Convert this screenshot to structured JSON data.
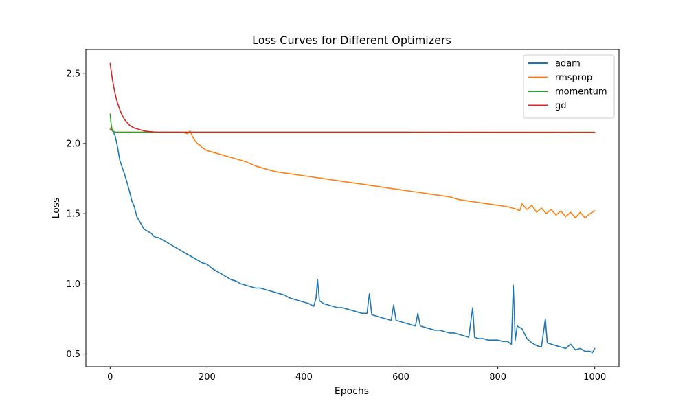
{
  "chart_data": {
    "type": "line",
    "title": "Loss Curves for Different Optimizers",
    "xlabel": "Epochs",
    "ylabel": "Loss",
    "xlim": [
      -50,
      1050
    ],
    "ylim": [
      0.41,
      2.67
    ],
    "xticks": [
      0,
      200,
      400,
      600,
      800,
      1000
    ],
    "xtick_labels": [
      "0",
      "200",
      "400",
      "600",
      "800",
      "1000"
    ],
    "yticks": [
      0.5,
      1.0,
      1.5,
      2.0,
      2.5
    ],
    "ytick_labels": [
      "0.5",
      "1.0",
      "1.5",
      "2.0",
      "2.5"
    ],
    "grid": false,
    "legend_position": "top-right",
    "series": [
      {
        "name": "adam",
        "color": "#1f77b4",
        "x": [
          0,
          5,
          10,
          15,
          20,
          25,
          30,
          35,
          40,
          45,
          50,
          55,
          60,
          65,
          70,
          75,
          80,
          85,
          90,
          95,
          100,
          110,
          120,
          130,
          140,
          150,
          160,
          170,
          180,
          190,
          200,
          210,
          220,
          230,
          240,
          250,
          260,
          270,
          280,
          290,
          300,
          310,
          320,
          330,
          340,
          350,
          360,
          370,
          380,
          390,
          400,
          410,
          420,
          425,
          428,
          432,
          440,
          450,
          460,
          470,
          480,
          490,
          500,
          510,
          520,
          530,
          535,
          540,
          550,
          560,
          570,
          580,
          585,
          590,
          600,
          610,
          620,
          630,
          635,
          640,
          650,
          660,
          670,
          680,
          690,
          700,
          710,
          720,
          730,
          740,
          748,
          752,
          760,
          770,
          780,
          790,
          800,
          810,
          820,
          828,
          832,
          836,
          840,
          850,
          860,
          870,
          880,
          890,
          898,
          902,
          910,
          920,
          930,
          940,
          950,
          960,
          970,
          980,
          990,
          995,
          1000
        ],
        "y": [
          2.1,
          2.09,
          2.06,
          1.98,
          1.88,
          1.83,
          1.78,
          1.72,
          1.66,
          1.59,
          1.55,
          1.48,
          1.45,
          1.42,
          1.39,
          1.38,
          1.37,
          1.36,
          1.34,
          1.33,
          1.33,
          1.31,
          1.29,
          1.27,
          1.25,
          1.23,
          1.21,
          1.19,
          1.17,
          1.15,
          1.14,
          1.11,
          1.09,
          1.07,
          1.05,
          1.03,
          1.02,
          1.0,
          0.99,
          0.98,
          0.97,
          0.97,
          0.96,
          0.95,
          0.94,
          0.93,
          0.92,
          0.9,
          0.89,
          0.88,
          0.87,
          0.86,
          0.84,
          0.9,
          1.03,
          0.88,
          0.86,
          0.85,
          0.84,
          0.83,
          0.83,
          0.82,
          0.81,
          0.8,
          0.79,
          0.79,
          0.93,
          0.78,
          0.77,
          0.76,
          0.75,
          0.74,
          0.85,
          0.74,
          0.73,
          0.72,
          0.71,
          0.7,
          0.79,
          0.7,
          0.69,
          0.68,
          0.67,
          0.67,
          0.66,
          0.65,
          0.65,
          0.64,
          0.63,
          0.62,
          0.83,
          0.62,
          0.61,
          0.61,
          0.6,
          0.6,
          0.6,
          0.59,
          0.59,
          0.57,
          0.99,
          0.6,
          0.7,
          0.68,
          0.61,
          0.58,
          0.56,
          0.55,
          0.75,
          0.58,
          0.57,
          0.56,
          0.55,
          0.54,
          0.57,
          0.53,
          0.54,
          0.52,
          0.52,
          0.51,
          0.54
        ]
      },
      {
        "name": "rmsprop",
        "color": "#ff7f0e",
        "x": [
          0,
          5,
          10,
          20,
          40,
          80,
          120,
          150,
          160,
          165,
          170,
          175,
          180,
          185,
          190,
          200,
          220,
          250,
          280,
          300,
          320,
          340,
          360,
          380,
          400,
          420,
          440,
          460,
          480,
          500,
          520,
          540,
          560,
          580,
          600,
          620,
          640,
          660,
          680,
          700,
          720,
          740,
          760,
          780,
          800,
          820,
          840,
          845,
          850,
          860,
          870,
          880,
          890,
          900,
          910,
          920,
          930,
          940,
          950,
          960,
          970,
          980,
          990,
          1000
        ],
        "y": [
          2.11,
          2.09,
          2.08,
          2.08,
          2.08,
          2.08,
          2.08,
          2.08,
          2.07,
          2.09,
          2.05,
          2.02,
          2.0,
          1.99,
          1.97,
          1.95,
          1.93,
          1.9,
          1.87,
          1.84,
          1.82,
          1.8,
          1.79,
          1.78,
          1.77,
          1.76,
          1.75,
          1.74,
          1.73,
          1.72,
          1.71,
          1.7,
          1.69,
          1.68,
          1.67,
          1.66,
          1.65,
          1.64,
          1.63,
          1.62,
          1.6,
          1.59,
          1.58,
          1.57,
          1.56,
          1.55,
          1.53,
          1.52,
          1.57,
          1.53,
          1.56,
          1.51,
          1.54,
          1.5,
          1.53,
          1.49,
          1.52,
          1.48,
          1.51,
          1.47,
          1.51,
          1.47,
          1.5,
          1.52
        ]
      },
      {
        "name": "momentum",
        "color": "#2ca02c",
        "x": [
          0,
          2,
          4,
          6,
          10,
          20,
          50,
          100,
          200,
          400,
          600,
          800,
          1000
        ],
        "y": [
          2.21,
          2.14,
          2.1,
          2.09,
          2.08,
          2.08,
          2.08,
          2.08,
          2.08,
          2.08,
          2.08,
          2.08,
          2.08
        ]
      },
      {
        "name": "gd",
        "color": "#d62728",
        "x": [
          0,
          5,
          10,
          15,
          20,
          25,
          30,
          40,
          50,
          60,
          70,
          80,
          90,
          100,
          120,
          150,
          200,
          400,
          600,
          800,
          1000
        ],
        "y": [
          2.57,
          2.45,
          2.36,
          2.29,
          2.24,
          2.2,
          2.17,
          2.13,
          2.11,
          2.1,
          2.09,
          2.085,
          2.082,
          2.08,
          2.08,
          2.08,
          2.08,
          2.08,
          2.08,
          2.079,
          2.078
        ]
      }
    ]
  }
}
